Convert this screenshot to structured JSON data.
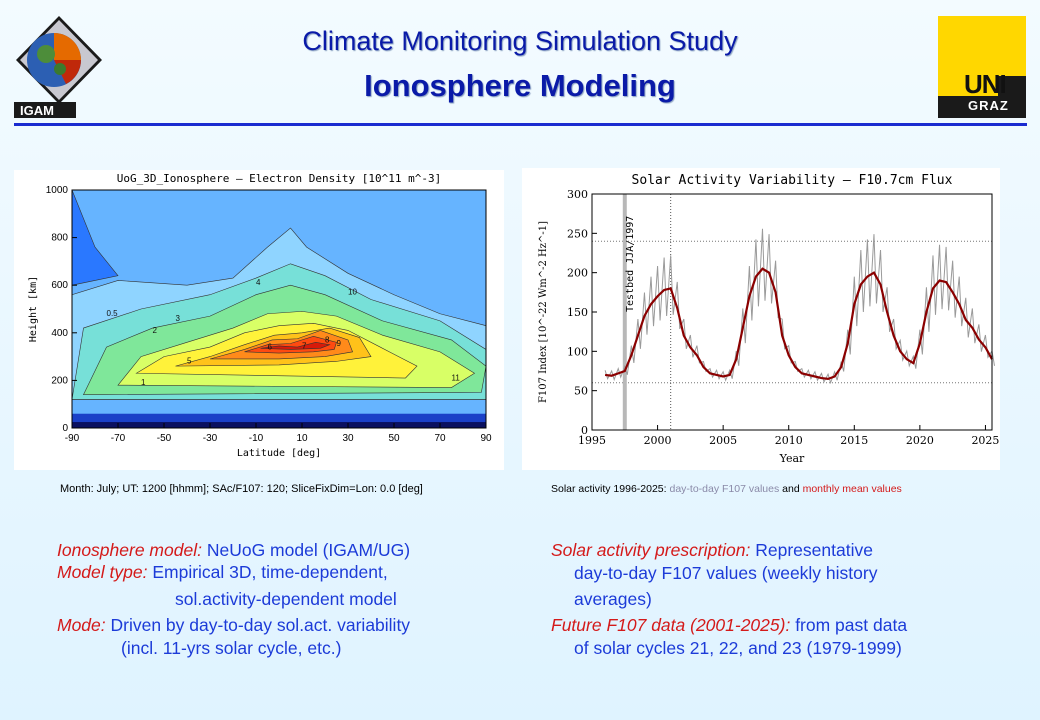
{
  "header": {
    "title": "Climate Monitoring Simulation Study",
    "subtitle": "Ionosphere Modeling",
    "left_logo_text": "IGAM",
    "right_logo_text_1": "UNI",
    "right_logo_text_2": "GRAZ"
  },
  "left_panel": {
    "caption": "Month: July; UT: 1200 [hhmm]; SAc/F107: 120;  SliceFixDim=Lon: 0.0 [deg]"
  },
  "right_panel": {
    "caption_a": "Solar activity 1996-2025: ",
    "caption_b": "day-to-day F107 values",
    "caption_c": " and ",
    "caption_d": "monthly mean values"
  },
  "body_text": {
    "l1_label": "Ionosphere model:",
    "l1_text": " NeUoG model (IGAM/UG)",
    "l2_label": "Model type:",
    "l2_text": " Empirical 3D, time-dependent,",
    "l3_text": "sol.activity-dependent model",
    "l4_label": "Mode:",
    "l4_text": " Driven by day-to-day sol.act. variability",
    "l5_text": "(incl. 11-yrs solar cycle, etc.)",
    "r1_label": "Solar activity prescription:",
    "r1_text": " Representative",
    "r2_text": "day-to-day F107 values (weekly history",
    "r3_text": "averages)",
    "r4_label": "Future F107 data (2001-2025):",
    "r4_text": " from past data",
    "r5_text": "of solar cycles 21, 22, and 23 (1979-1999)"
  },
  "chart_data": [
    {
      "type": "heatmap",
      "title": "UoG_3D_Ionosphere  –  Electron Density [10^11 m^-3]",
      "xlabel": "Latitude [deg]",
      "ylabel": "Height [km]",
      "xlim": [
        -90,
        90
      ],
      "ylim": [
        0,
        1000
      ],
      "x_ticks": [
        "-90",
        "-70",
        "-50",
        "-30",
        "-10",
        "10",
        "30",
        "50",
        "70",
        "90"
      ],
      "y_ticks": [
        "0",
        "200",
        "400",
        "600",
        "800",
        "1000"
      ],
      "contour_labels": [
        "0.5",
        "1",
        "2",
        "3",
        "4",
        "5",
        "6",
        "7",
        "8",
        "9",
        "10",
        "11"
      ],
      "peak_lat_deg": [
        -5,
        18
      ],
      "peak_height_km": [
        330,
        370
      ],
      "peak_value": 11
    },
    {
      "type": "line",
      "title": "Solar Activity Variability – F10.7cm Flux",
      "xlabel": "Year",
      "ylabel": "F107 Index [10^-22 Wm^-2 Hz^-1]",
      "xlim": [
        1995,
        2025.5
      ],
      "ylim": [
        0,
        300
      ],
      "x_ticks": [
        "1995",
        "2000",
        "2005",
        "2010",
        "2015",
        "2020",
        "2025"
      ],
      "y_ticks": [
        "0",
        "50",
        "100",
        "150",
        "200",
        "250",
        "300"
      ],
      "grid_y": [
        60,
        240
      ],
      "testbed_year": 1997.5,
      "testbed_label": "Testbed JJA/1997",
      "divider_year": 2001,
      "series": [
        {
          "color": "#8b0000",
          "x": [
            1996,
            1996.5,
            1997,
            1997.5,
            1998,
            1998.5,
            1999,
            1999.5,
            2000,
            2000.5,
            2001,
            2001.5,
            2002,
            2002.5,
            2003,
            2003.5,
            2004,
            2004.5,
            2005,
            2005.5,
            2006,
            2006.5,
            2007,
            2007.5,
            2008,
            2008.5,
            2009,
            2009.5,
            2010,
            2010.5,
            2011,
            2011.5,
            2012,
            2012.5,
            2013,
            2013.5,
            2014,
            2014.5,
            2015,
            2015.5,
            2016,
            2016.5,
            2017,
            2017.5,
            2018,
            2018.5,
            2019,
            2019.5,
            2020,
            2020.5,
            2021,
            2021.5,
            2022,
            2022.5,
            2023,
            2023.5,
            2024,
            2024.5,
            2025,
            2025.5
          ],
          "y": [
            70,
            69,
            72,
            75,
            95,
            120,
            145,
            160,
            170,
            178,
            180,
            155,
            120,
            105,
            95,
            80,
            72,
            70,
            68,
            70,
            90,
            130,
            170,
            195,
            205,
            200,
            175,
            120,
            95,
            80,
            72,
            70,
            68,
            66,
            65,
            68,
            80,
            110,
            160,
            185,
            195,
            200,
            185,
            150,
            120,
            100,
            90,
            85,
            110,
            150,
            180,
            190,
            188,
            175,
            160,
            140,
            130,
            115,
            105,
            90
          ]
        }
      ]
    }
  ]
}
